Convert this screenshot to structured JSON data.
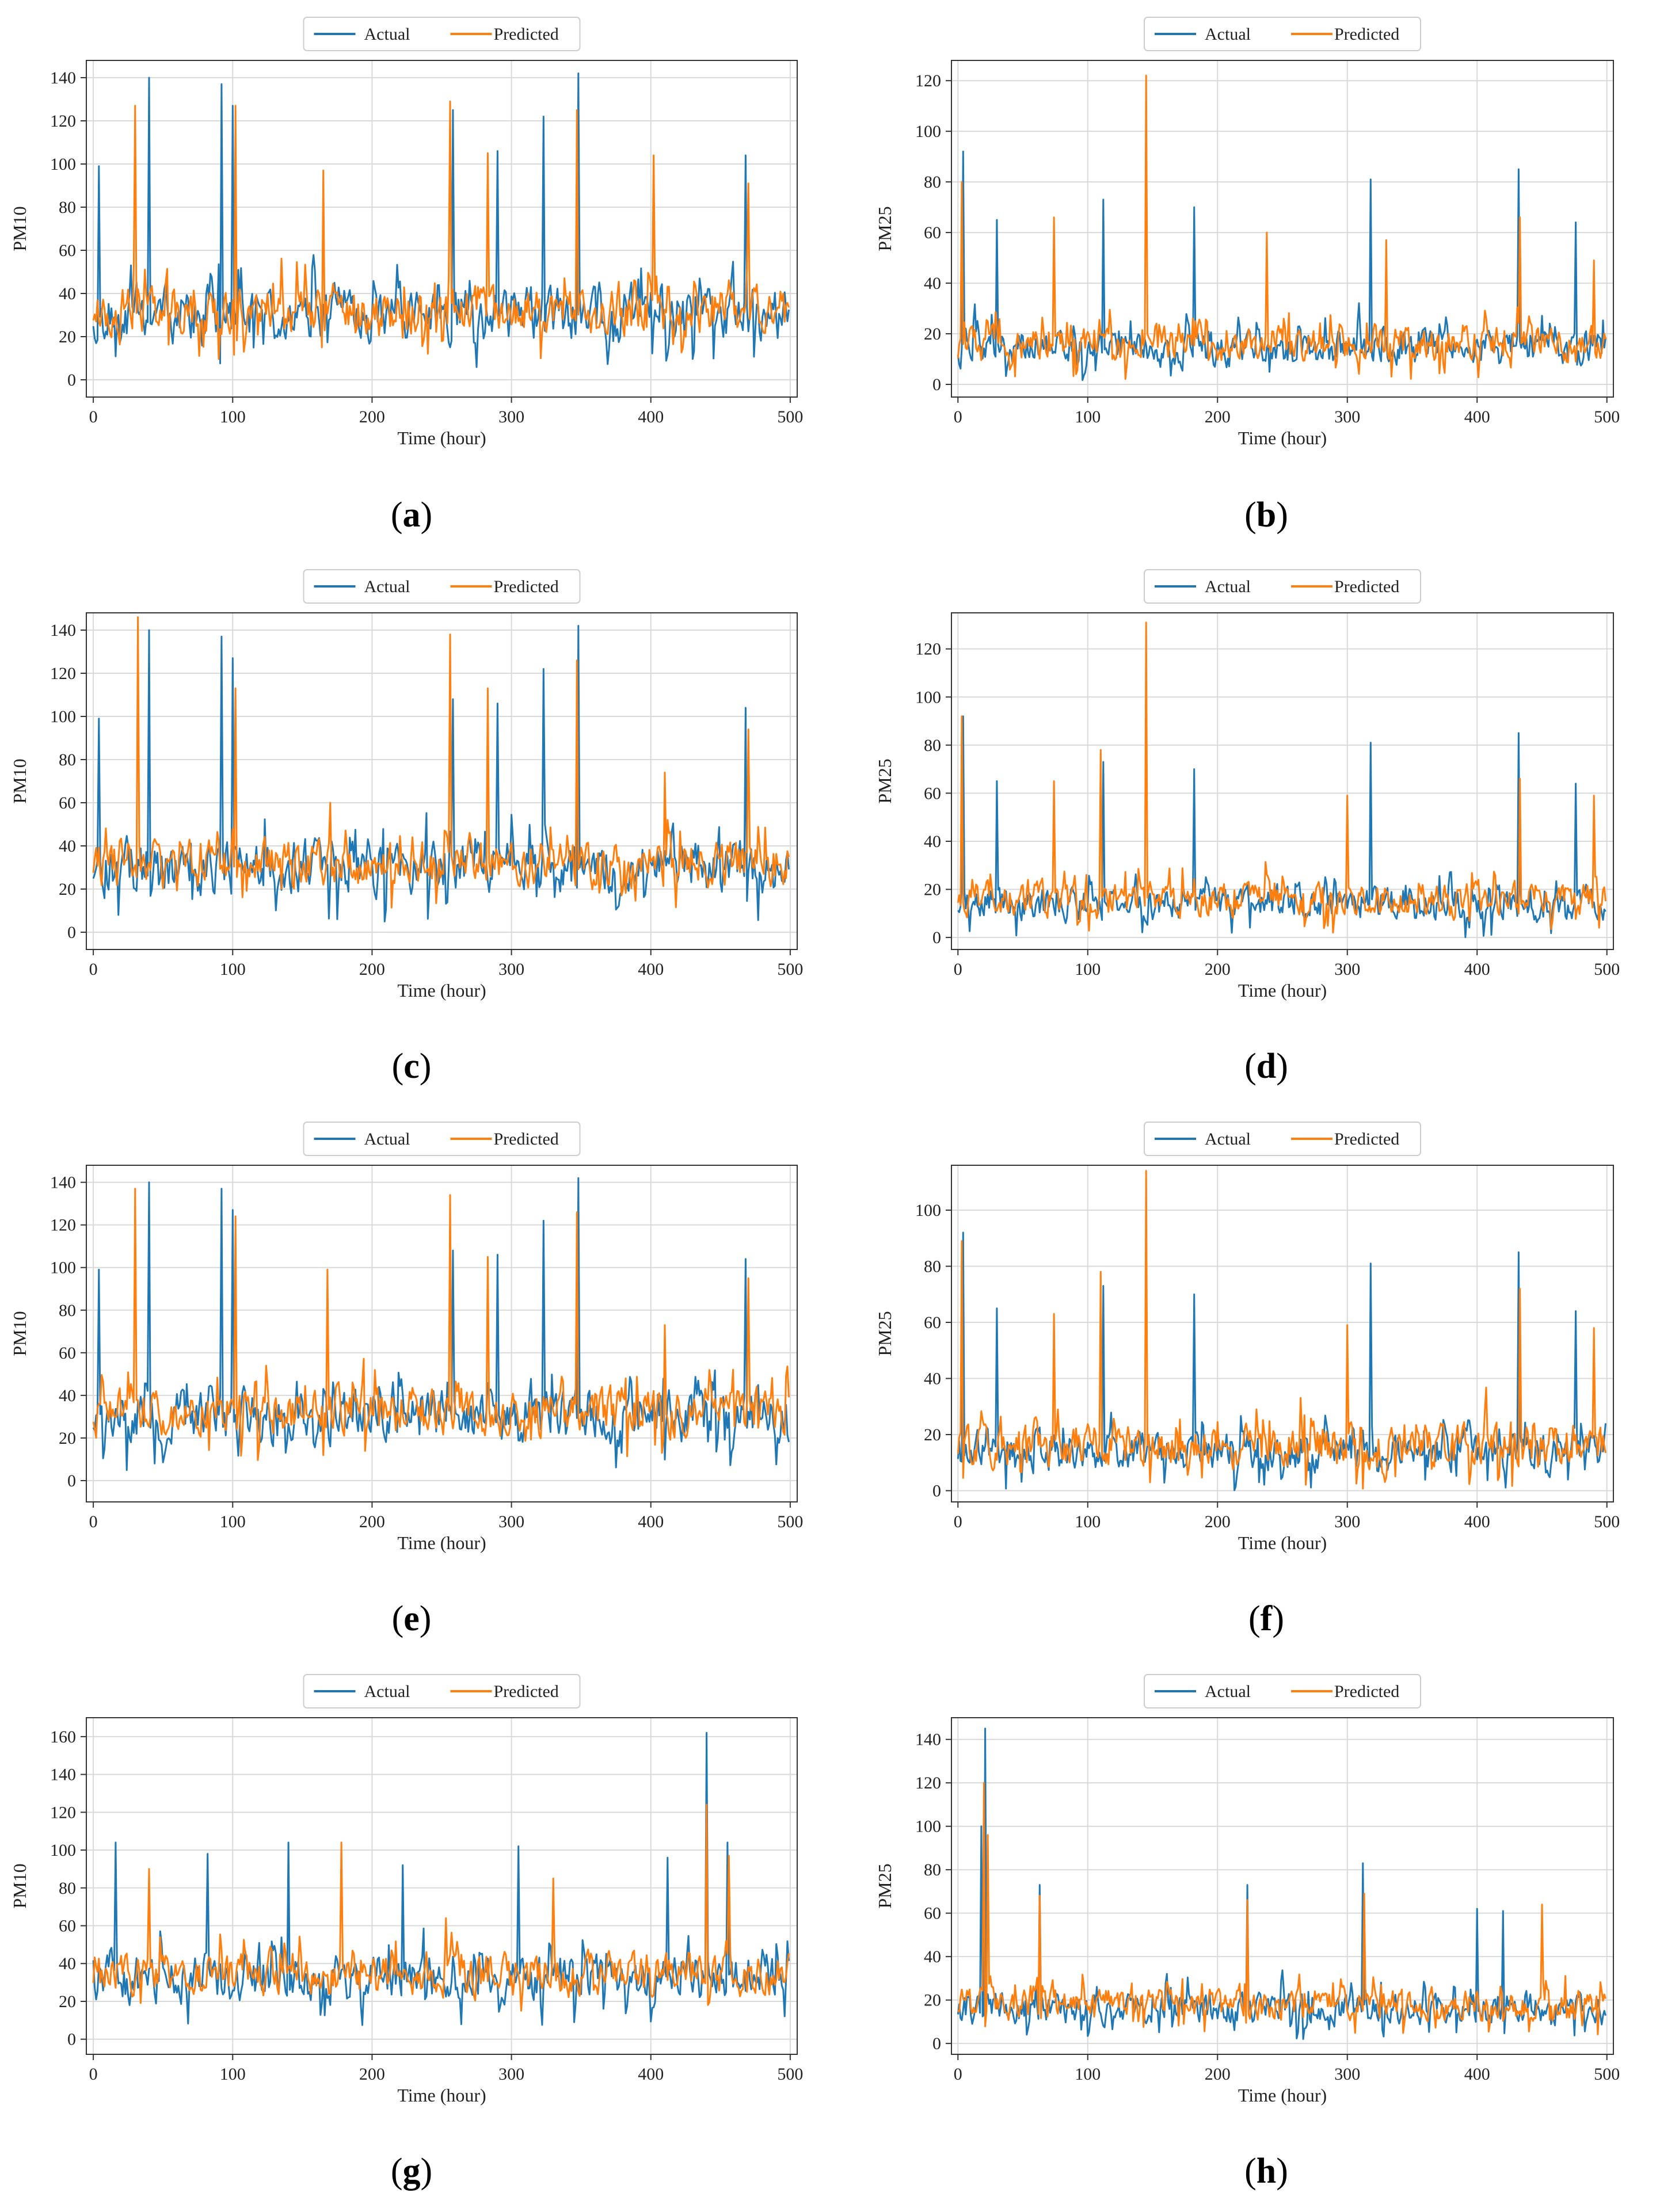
{
  "figure": {
    "legend": {
      "actual_label": "Actual",
      "predicted_label": "Predicted"
    },
    "colors": {
      "actual": "#1f77b4",
      "predicted": "#ff7f0e",
      "grid": "#d9d9d9",
      "axis": "#333333"
    },
    "xlabel": "Time (hour)"
  },
  "chart_data": [
    {
      "id": "a",
      "caption": "a",
      "type": "line",
      "xlabel": "Time (hour)",
      "ylabel": "PM10",
      "xlim": [
        -5,
        505
      ],
      "ylim": [
        -8,
        148
      ],
      "xticks": [
        0,
        100,
        200,
        300,
        400,
        500
      ],
      "yticks": [
        0,
        20,
        40,
        60,
        80,
        100,
        120,
        140
      ],
      "series": [
        {
          "name": "Actual",
          "n": 500,
          "base": 30,
          "amp": 18,
          "seed": 11,
          "spikes": [
            [
              4,
              99
            ],
            [
              40,
              140
            ],
            [
              92,
              137
            ],
            [
              100,
              127
            ],
            [
              258,
              125
            ],
            [
              290,
              106
            ],
            [
              323,
              122
            ],
            [
              348,
              142
            ],
            [
              468,
              104
            ]
          ]
        },
        {
          "name": "Predicted",
          "n": 500,
          "base": 32,
          "amp": 16,
          "seed": 23,
          "spikes": [
            [
              30,
              127
            ],
            [
              102,
              127
            ],
            [
              165,
              97
            ],
            [
              256,
              129
            ],
            [
              283,
              105
            ],
            [
              347,
              125
            ],
            [
              402,
              104
            ],
            [
              470,
              91
            ]
          ]
        }
      ]
    },
    {
      "id": "b",
      "caption": "b",
      "type": "line",
      "xlabel": "Time (hour)",
      "ylabel": "PM25",
      "xlim": [
        -5,
        505
      ],
      "ylim": [
        -5,
        128
      ],
      "xticks": [
        0,
        100,
        200,
        300,
        400,
        500
      ],
      "yticks": [
        0,
        20,
        40,
        60,
        80,
        100,
        120
      ],
      "series": [
        {
          "name": "Actual",
          "n": 500,
          "base": 14,
          "amp": 10,
          "seed": 31,
          "spikes": [
            [
              4,
              92
            ],
            [
              30,
              65
            ],
            [
              112,
              73
            ],
            [
              182,
              70
            ],
            [
              318,
              81
            ],
            [
              432,
              85
            ],
            [
              476,
              64
            ]
          ]
        },
        {
          "name": "Predicted",
          "n": 500,
          "base": 16,
          "amp": 10,
          "seed": 47,
          "spikes": [
            [
              3,
              80
            ],
            [
              74,
              66
            ],
            [
              145,
              122
            ],
            [
              238,
              60
            ],
            [
              330,
              57
            ],
            [
              433,
              66
            ],
            [
              490,
              49
            ]
          ]
        }
      ]
    },
    {
      "id": "c",
      "caption": "c",
      "type": "line",
      "xlabel": "Time (hour)",
      "ylabel": "PM10",
      "xlim": [
        -5,
        505
      ],
      "ylim": [
        -8,
        148
      ],
      "xticks": [
        0,
        100,
        200,
        300,
        400,
        500
      ],
      "yticks": [
        0,
        20,
        40,
        60,
        80,
        100,
        120,
        140
      ],
      "series": [
        {
          "name": "Actual",
          "n": 500,
          "base": 30,
          "amp": 18,
          "seed": 13,
          "spikes": [
            [
              4,
              99
            ],
            [
              40,
              140
            ],
            [
              92,
              137
            ],
            [
              100,
              127
            ],
            [
              258,
              108
            ],
            [
              290,
              106
            ],
            [
              323,
              122
            ],
            [
              348,
              142
            ],
            [
              468,
              104
            ]
          ]
        },
        {
          "name": "Predicted",
          "n": 500,
          "base": 32,
          "amp": 16,
          "seed": 29,
          "spikes": [
            [
              32,
              146
            ],
            [
              102,
              113
            ],
            [
              170,
              60
            ],
            [
              256,
              138
            ],
            [
              283,
              113
            ],
            [
              347,
              126
            ],
            [
              410,
              74
            ],
            [
              470,
              94
            ]
          ]
        }
      ]
    },
    {
      "id": "d",
      "caption": "d",
      "type": "line",
      "xlabel": "Time (hour)",
      "ylabel": "PM25",
      "xlim": [
        -5,
        505
      ],
      "ylim": [
        -5,
        135
      ],
      "xticks": [
        0,
        100,
        200,
        300,
        400,
        500
      ],
      "yticks": [
        0,
        20,
        40,
        60,
        80,
        100,
        120
      ],
      "series": [
        {
          "name": "Actual",
          "n": 500,
          "base": 14,
          "amp": 10,
          "seed": 37,
          "spikes": [
            [
              4,
              92
            ],
            [
              30,
              65
            ],
            [
              112,
              73
            ],
            [
              182,
              70
            ],
            [
              318,
              81
            ],
            [
              432,
              85
            ],
            [
              476,
              64
            ]
          ]
        },
        {
          "name": "Predicted",
          "n": 500,
          "base": 16,
          "amp": 10,
          "seed": 53,
          "spikes": [
            [
              3,
              92
            ],
            [
              74,
              65
            ],
            [
              110,
              78
            ],
            [
              145,
              131
            ],
            [
              300,
              59
            ],
            [
              433,
              66
            ],
            [
              490,
              59
            ]
          ]
        }
      ]
    },
    {
      "id": "e",
      "caption": "e",
      "type": "line",
      "xlabel": "Time (hour)",
      "ylabel": "PM10",
      "xlim": [
        -5,
        505
      ],
      "ylim": [
        -10,
        148
      ],
      "xticks": [
        0,
        100,
        200,
        300,
        400,
        500
      ],
      "yticks": [
        0,
        20,
        40,
        60,
        80,
        100,
        120,
        140
      ],
      "series": [
        {
          "name": "Actual",
          "n": 500,
          "base": 30,
          "amp": 18,
          "seed": 17,
          "spikes": [
            [
              4,
              99
            ],
            [
              40,
              140
            ],
            [
              92,
              137
            ],
            [
              100,
              127
            ],
            [
              258,
              108
            ],
            [
              290,
              106
            ],
            [
              323,
              122
            ],
            [
              348,
              142
            ],
            [
              468,
              104
            ]
          ]
        },
        {
          "name": "Predicted",
          "n": 500,
          "base": 32,
          "amp": 16,
          "seed": 41,
          "spikes": [
            [
              30,
              137
            ],
            [
              102,
              124
            ],
            [
              168,
              99
            ],
            [
              256,
              134
            ],
            [
              283,
              105
            ],
            [
              347,
              126
            ],
            [
              410,
              73
            ],
            [
              470,
              95
            ]
          ]
        }
      ]
    },
    {
      "id": "f",
      "caption": "f",
      "type": "line",
      "xlabel": "Time (hour)",
      "ylabel": "PM25",
      "xlim": [
        -5,
        505
      ],
      "ylim": [
        -4,
        116
      ],
      "xticks": [
        0,
        100,
        200,
        300,
        400,
        500
      ],
      "yticks": [
        0,
        20,
        40,
        60,
        80,
        100
      ],
      "series": [
        {
          "name": "Actual",
          "n": 500,
          "base": 14,
          "amp": 10,
          "seed": 43,
          "spikes": [
            [
              4,
              92
            ],
            [
              30,
              65
            ],
            [
              112,
              73
            ],
            [
              182,
              70
            ],
            [
              318,
              81
            ],
            [
              432,
              85
            ],
            [
              476,
              64
            ]
          ]
        },
        {
          "name": "Predicted",
          "n": 500,
          "base": 16,
          "amp": 11,
          "seed": 59,
          "spikes": [
            [
              3,
              89
            ],
            [
              74,
              63
            ],
            [
              110,
              78
            ],
            [
              145,
              114
            ],
            [
              300,
              59
            ],
            [
              433,
              72
            ],
            [
              490,
              58
            ]
          ]
        }
      ]
    },
    {
      "id": "g",
      "caption": "g",
      "type": "line",
      "xlabel": "Time (hour)",
      "ylabel": "PM10",
      "xlim": [
        -5,
        505
      ],
      "ylim": [
        -8,
        170
      ],
      "xticks": [
        0,
        100,
        200,
        300,
        400,
        500
      ],
      "yticks": [
        0,
        20,
        40,
        60,
        80,
        100,
        120,
        140,
        160
      ],
      "series": [
        {
          "name": "Actual",
          "n": 500,
          "base": 32,
          "amp": 18,
          "seed": 19,
          "spikes": [
            [
              16,
              104
            ],
            [
              82,
              98
            ],
            [
              140,
              104
            ],
            [
              222,
              92
            ],
            [
              305,
              102
            ],
            [
              412,
              96
            ],
            [
              440,
              162
            ],
            [
              455,
              104
            ]
          ]
        },
        {
          "name": "Predicted",
          "n": 500,
          "base": 34,
          "amp": 16,
          "seed": 61,
          "spikes": [
            [
              40,
              90
            ],
            [
              178,
              104
            ],
            [
              253,
              64
            ],
            [
              330,
              85
            ],
            [
              440,
              124
            ],
            [
              456,
              97
            ]
          ]
        }
      ]
    },
    {
      "id": "h",
      "caption": "h",
      "type": "line",
      "xlabel": "Time (hour)",
      "ylabel": "PM25",
      "xlim": [
        -5,
        505
      ],
      "ylim": [
        -5,
        150
      ],
      "xticks": [
        0,
        100,
        200,
        300,
        400,
        500
      ],
      "yticks": [
        0,
        20,
        40,
        60,
        80,
        100,
        120,
        140
      ],
      "series": [
        {
          "name": "Actual",
          "n": 500,
          "base": 16,
          "amp": 10,
          "seed": 67,
          "spikes": [
            [
              18,
              100
            ],
            [
              21,
              145
            ],
            [
              63,
              73
            ],
            [
              223,
              73
            ],
            [
              312,
              83
            ],
            [
              400,
              62
            ],
            [
              420,
              61
            ]
          ]
        },
        {
          "name": "Predicted",
          "n": 500,
          "base": 18,
          "amp": 10,
          "seed": 71,
          "spikes": [
            [
              20,
              120
            ],
            [
              23,
              96
            ],
            [
              63,
              68
            ],
            [
              223,
              66
            ],
            [
              313,
              69
            ],
            [
              450,
              64
            ]
          ]
        }
      ]
    }
  ]
}
